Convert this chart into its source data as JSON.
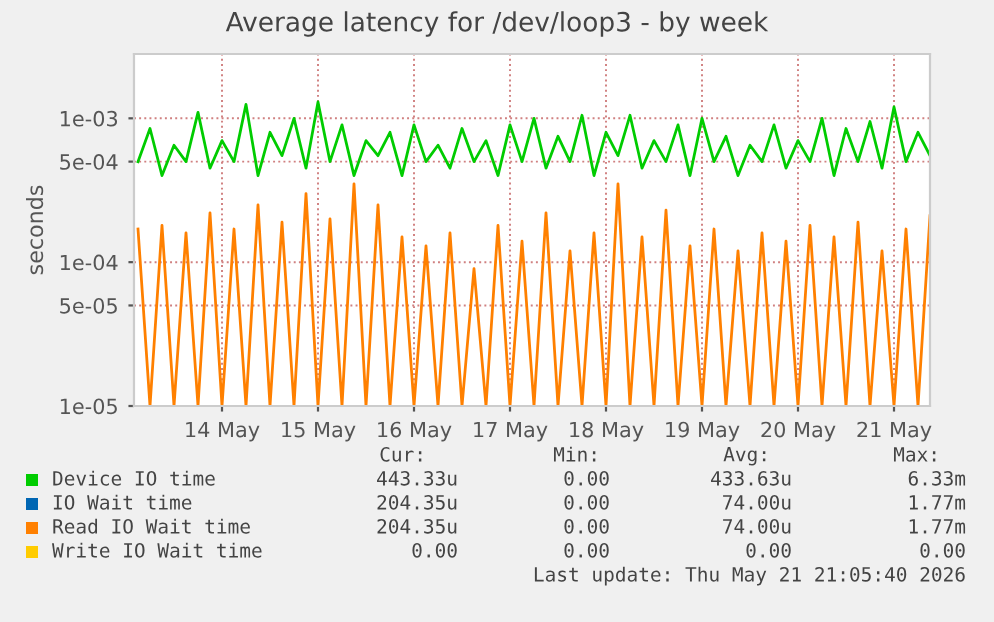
{
  "chart_data": {
    "type": "line",
    "title": "Average latency for /dev/loop3 - by week",
    "ylabel": "seconds",
    "log": "y",
    "ylim": [
      1e-05,
      0.0028
    ],
    "yticks": [
      {
        "value": 1e-05,
        "label": "1e-05"
      },
      {
        "value": 5e-05,
        "label": "5e-05"
      },
      {
        "value": 0.0001,
        "label": "1e-04"
      },
      {
        "value": 0.0005,
        "label": "5e-04"
      },
      {
        "value": 0.001,
        "label": "1e-03"
      }
    ],
    "xlim": [
      "2026-05-13T14:00",
      "2026-05-21T21:00"
    ],
    "xticks": [
      {
        "value": "2026-05-14T12:00",
        "label": "14 May"
      },
      {
        "value": "2026-05-15T12:00",
        "label": "15 May"
      },
      {
        "value": "2026-05-16T12:00",
        "label": "16 May"
      },
      {
        "value": "2026-05-17T12:00",
        "label": "17 May"
      },
      {
        "value": "2026-05-18T12:00",
        "label": "18 May"
      },
      {
        "value": "2026-05-19T12:00",
        "label": "19 May"
      },
      {
        "value": "2026-05-20T12:00",
        "label": "20 May"
      },
      {
        "value": "2026-05-21T12:00",
        "label": "21 May"
      }
    ],
    "grid": true,
    "legend": "bottom",
    "x": [
      "2026-05-13T15:00",
      "2026-05-13T18:00",
      "2026-05-13T21:00",
      "2026-05-14T00:00",
      "2026-05-14T03:00",
      "2026-05-14T06:00",
      "2026-05-14T09:00",
      "2026-05-14T12:00",
      "2026-05-14T15:00",
      "2026-05-14T18:00",
      "2026-05-14T21:00",
      "2026-05-15T00:00",
      "2026-05-15T03:00",
      "2026-05-15T06:00",
      "2026-05-15T09:00",
      "2026-05-15T12:00",
      "2026-05-15T15:00",
      "2026-05-15T18:00",
      "2026-05-15T21:00",
      "2026-05-16T00:00",
      "2026-05-16T03:00",
      "2026-05-16T06:00",
      "2026-05-16T09:00",
      "2026-05-16T12:00",
      "2026-05-16T15:00",
      "2026-05-16T18:00",
      "2026-05-16T21:00",
      "2026-05-17T00:00",
      "2026-05-17T03:00",
      "2026-05-17T06:00",
      "2026-05-17T09:00",
      "2026-05-17T12:00",
      "2026-05-17T15:00",
      "2026-05-17T18:00",
      "2026-05-17T21:00",
      "2026-05-18T00:00",
      "2026-05-18T03:00",
      "2026-05-18T06:00",
      "2026-05-18T09:00",
      "2026-05-18T12:00",
      "2026-05-18T15:00",
      "2026-05-18T18:00",
      "2026-05-18T21:00",
      "2026-05-19T00:00",
      "2026-05-19T03:00",
      "2026-05-19T06:00",
      "2026-05-19T09:00",
      "2026-05-19T12:00",
      "2026-05-19T15:00",
      "2026-05-19T18:00",
      "2026-05-19T21:00",
      "2026-05-20T00:00",
      "2026-05-20T03:00",
      "2026-05-20T06:00",
      "2026-05-20T09:00",
      "2026-05-20T12:00",
      "2026-05-20T15:00",
      "2026-05-20T18:00",
      "2026-05-20T21:00",
      "2026-05-21T00:00",
      "2026-05-21T03:00",
      "2026-05-21T06:00",
      "2026-05-21T09:00",
      "2026-05-21T12:00",
      "2026-05-21T15:00",
      "2026-05-21T18:00",
      "2026-05-21T21:00"
    ],
    "series": [
      {
        "name": "Device IO time",
        "color": "#00cc00",
        "values": [
          0.0005,
          0.00085,
          0.0004,
          0.00065,
          0.0005,
          0.0011,
          0.00045,
          0.0007,
          0.0005,
          0.00125,
          0.0004,
          0.0008,
          0.00055,
          0.001,
          0.00045,
          0.0013,
          0.0005,
          0.0009,
          0.0004,
          0.0007,
          0.00055,
          0.0008,
          0.0004,
          0.0009,
          0.0005,
          0.00065,
          0.00045,
          0.00085,
          0.0005,
          0.0007,
          0.0004,
          0.0009,
          0.0005,
          0.001,
          0.00045,
          0.00075,
          0.0005,
          0.00105,
          0.0004,
          0.0008,
          0.00055,
          0.00105,
          0.00045,
          0.0007,
          0.0005,
          0.0009,
          0.0004,
          0.001,
          0.0005,
          0.00075,
          0.0004,
          0.00065,
          0.0005,
          0.0009,
          0.00045,
          0.0007,
          0.0005,
          0.001,
          0.0004,
          0.00085,
          0.0005,
          0.00095,
          0.00045,
          0.0012,
          0.0005,
          0.0008,
          0.00055
        ]
      },
      {
        "name": "IO Wait time",
        "color": "#0066b3",
        "values": [
          null,
          null,
          null,
          null,
          null,
          null,
          null,
          null,
          null,
          null,
          null,
          null,
          null,
          null,
          null,
          null,
          null,
          null,
          null,
          null,
          null,
          null,
          null,
          null,
          null,
          null,
          null,
          null,
          null,
          null,
          null,
          null,
          null,
          null,
          null,
          null,
          null,
          null,
          null,
          null,
          null,
          null,
          null,
          null,
          null,
          null,
          null,
          null,
          null,
          null,
          null,
          null,
          null,
          null,
          null,
          null,
          null,
          null,
          null,
          null,
          null,
          null,
          null,
          null,
          null,
          null,
          null
        ]
      },
      {
        "name": "Read IO Wait time",
        "color": "#ff8000",
        "values": [
          0.00017,
          1e-05,
          0.00018,
          1e-05,
          0.00016,
          1e-05,
          0.00022,
          1e-05,
          0.00017,
          1e-05,
          0.00025,
          1e-05,
          0.00019,
          1e-05,
          0.0003,
          1e-05,
          0.0002,
          1e-05,
          0.00035,
          1e-05,
          0.00025,
          1e-05,
          0.00015,
          1e-05,
          0.00013,
          1e-05,
          0.00016,
          1e-05,
          9e-05,
          1e-05,
          0.00018,
          1e-05,
          0.00014,
          1e-05,
          0.00022,
          1e-05,
          0.00012,
          1e-05,
          0.00016,
          1e-05,
          0.00035,
          1e-05,
          0.00015,
          1e-05,
          0.00023,
          1e-05,
          0.00013,
          1e-05,
          0.00017,
          1e-05,
          0.00012,
          1e-05,
          0.00016,
          1e-05,
          0.00014,
          1e-05,
          0.00018,
          1e-05,
          0.00015,
          1e-05,
          0.00019,
          1e-05,
          0.00012,
          1e-05,
          0.00017,
          1e-05,
          0.00021
        ]
      },
      {
        "name": "Write IO Wait time",
        "color": "#ffcc00",
        "values": [
          null,
          null,
          null,
          null,
          null,
          null,
          null,
          null,
          null,
          null,
          null,
          null,
          null,
          null,
          null,
          null,
          null,
          null,
          null,
          null,
          null,
          null,
          null,
          null,
          null,
          null,
          null,
          null,
          null,
          null,
          null,
          null,
          null,
          null,
          null,
          null,
          null,
          null,
          null,
          null,
          null,
          null,
          null,
          null,
          null,
          null,
          null,
          null,
          null,
          null,
          null,
          null,
          null,
          null,
          null,
          null,
          null,
          null,
          null,
          null,
          null,
          null,
          null,
          null,
          null,
          null,
          null
        ]
      }
    ],
    "annotations": [
      "Cur:",
      "Min:",
      "Avg:",
      "Max:",
      "443.33u",
      "0.00",
      "433.63u",
      "6.33m",
      "204.35u",
      "0.00",
      "74.00u",
      "1.77m",
      "204.35u",
      "0.00",
      "74.00u",
      "1.77m",
      "0.00",
      "0.00",
      "0.00",
      "0.00",
      "Last update: Thu May 21 21:05:40 2026"
    ]
  }
}
